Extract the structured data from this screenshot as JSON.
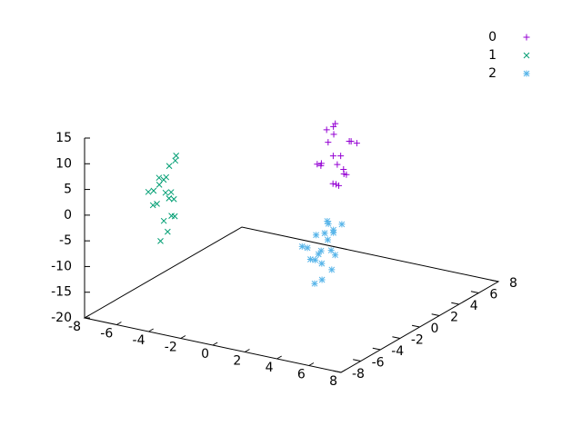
{
  "chart_data": {
    "type": "scatter3d",
    "xlim": [
      -8,
      8
    ],
    "ylim": [
      -8,
      8
    ],
    "zlim": [
      -20,
      15
    ],
    "xticks": [
      -8,
      -6,
      -4,
      -2,
      0,
      2,
      4,
      6,
      8
    ],
    "yticks": [
      -8,
      -6,
      -4,
      -2,
      0,
      2,
      4,
      6,
      8
    ],
    "zticks": [
      -20,
      -15,
      -10,
      -5,
      0,
      5,
      10,
      15
    ],
    "legend": "top-right",
    "series": [
      {
        "name": "0",
        "color": "#9400d3",
        "marker": "plus",
        "x": [
          1.2,
          2.0,
          0.8,
          1.9,
          1.5,
          2.4,
          0.6,
          1.1,
          1.7,
          2.2,
          1.3,
          0.9,
          1.8,
          2.6,
          1.4,
          1.0,
          2.1,
          1.6,
          0.7,
          2.3
        ],
        "y": [
          2.5,
          1.4,
          3.0,
          2.2,
          1.8,
          0.9,
          2.6,
          1.2,
          3.3,
          2.0,
          0.5,
          2.8,
          1.6,
          1.1,
          3.6,
          2.1,
          0.8,
          2.4,
          1.9,
          2.9
        ],
        "z": [
          12.3,
          6.1,
          9.4,
          4.2,
          7.0,
          2.8,
          10.6,
          5.5,
          8.3,
          3.6,
          6.7,
          11.2,
          1.9,
          5.0,
          7.8,
          9.0,
          3.1,
          6.4,
          4.9,
          8.8
        ]
      },
      {
        "name": "1",
        "color": "#009e73",
        "marker": "cross",
        "x": [
          -6.3,
          -5.8,
          -6.6,
          -5.5,
          -6.1,
          -5.9,
          -6.8,
          -5.3,
          -6.2,
          -5.7,
          -6.4,
          -6.0,
          -5.6,
          -6.7,
          -5.4,
          -6.1,
          -5.9,
          -6.5,
          -5.8,
          -6.0
        ],
        "y": [
          -3.2,
          -2.5,
          -3.8,
          -2.9,
          -3.5,
          -2.2,
          -3.0,
          -3.6,
          -2.7,
          -3.3,
          -2.0,
          -3.9,
          -2.6,
          -3.1,
          -3.4,
          -2.8,
          -3.7,
          -2.4,
          -3.0,
          -3.2
        ],
        "z": [
          3.1,
          -1.5,
          0.8,
          -4.2,
          2.2,
          5.6,
          -2.8,
          1.4,
          -0.3,
          -6.9,
          4.0,
          -1.0,
          7.2,
          0.2,
          -3.5,
          2.9,
          -8.4,
          1.7,
          -0.8,
          -5.1
        ]
      },
      {
        "name": "2",
        "color": "#56b4e9",
        "marker": "star",
        "x": [
          0.8,
          1.5,
          0.3,
          1.2,
          1.9,
          0.6,
          1.0,
          1.7,
          0.4,
          1.3,
          2.1,
          0.9,
          1.6,
          0.2,
          1.1,
          1.4,
          0.7,
          1.8,
          0.5,
          1.2
        ],
        "y": [
          1.2,
          2.0,
          0.6,
          1.8,
          1.0,
          2.4,
          0.3,
          1.5,
          2.1,
          0.9,
          1.7,
          2.8,
          0.5,
          1.3,
          1.9,
          0.8,
          2.5,
          1.1,
          1.6,
          0.4
        ],
        "z": [
          -8.2,
          -12.5,
          -10.1,
          -6.4,
          -14.0,
          -9.3,
          -11.8,
          -7.5,
          -13.2,
          -10.6,
          -5.8,
          -8.9,
          -15.6,
          -11.2,
          -9.7,
          -12.9,
          -7.0,
          -10.4,
          -13.7,
          -16.5
        ]
      }
    ]
  }
}
